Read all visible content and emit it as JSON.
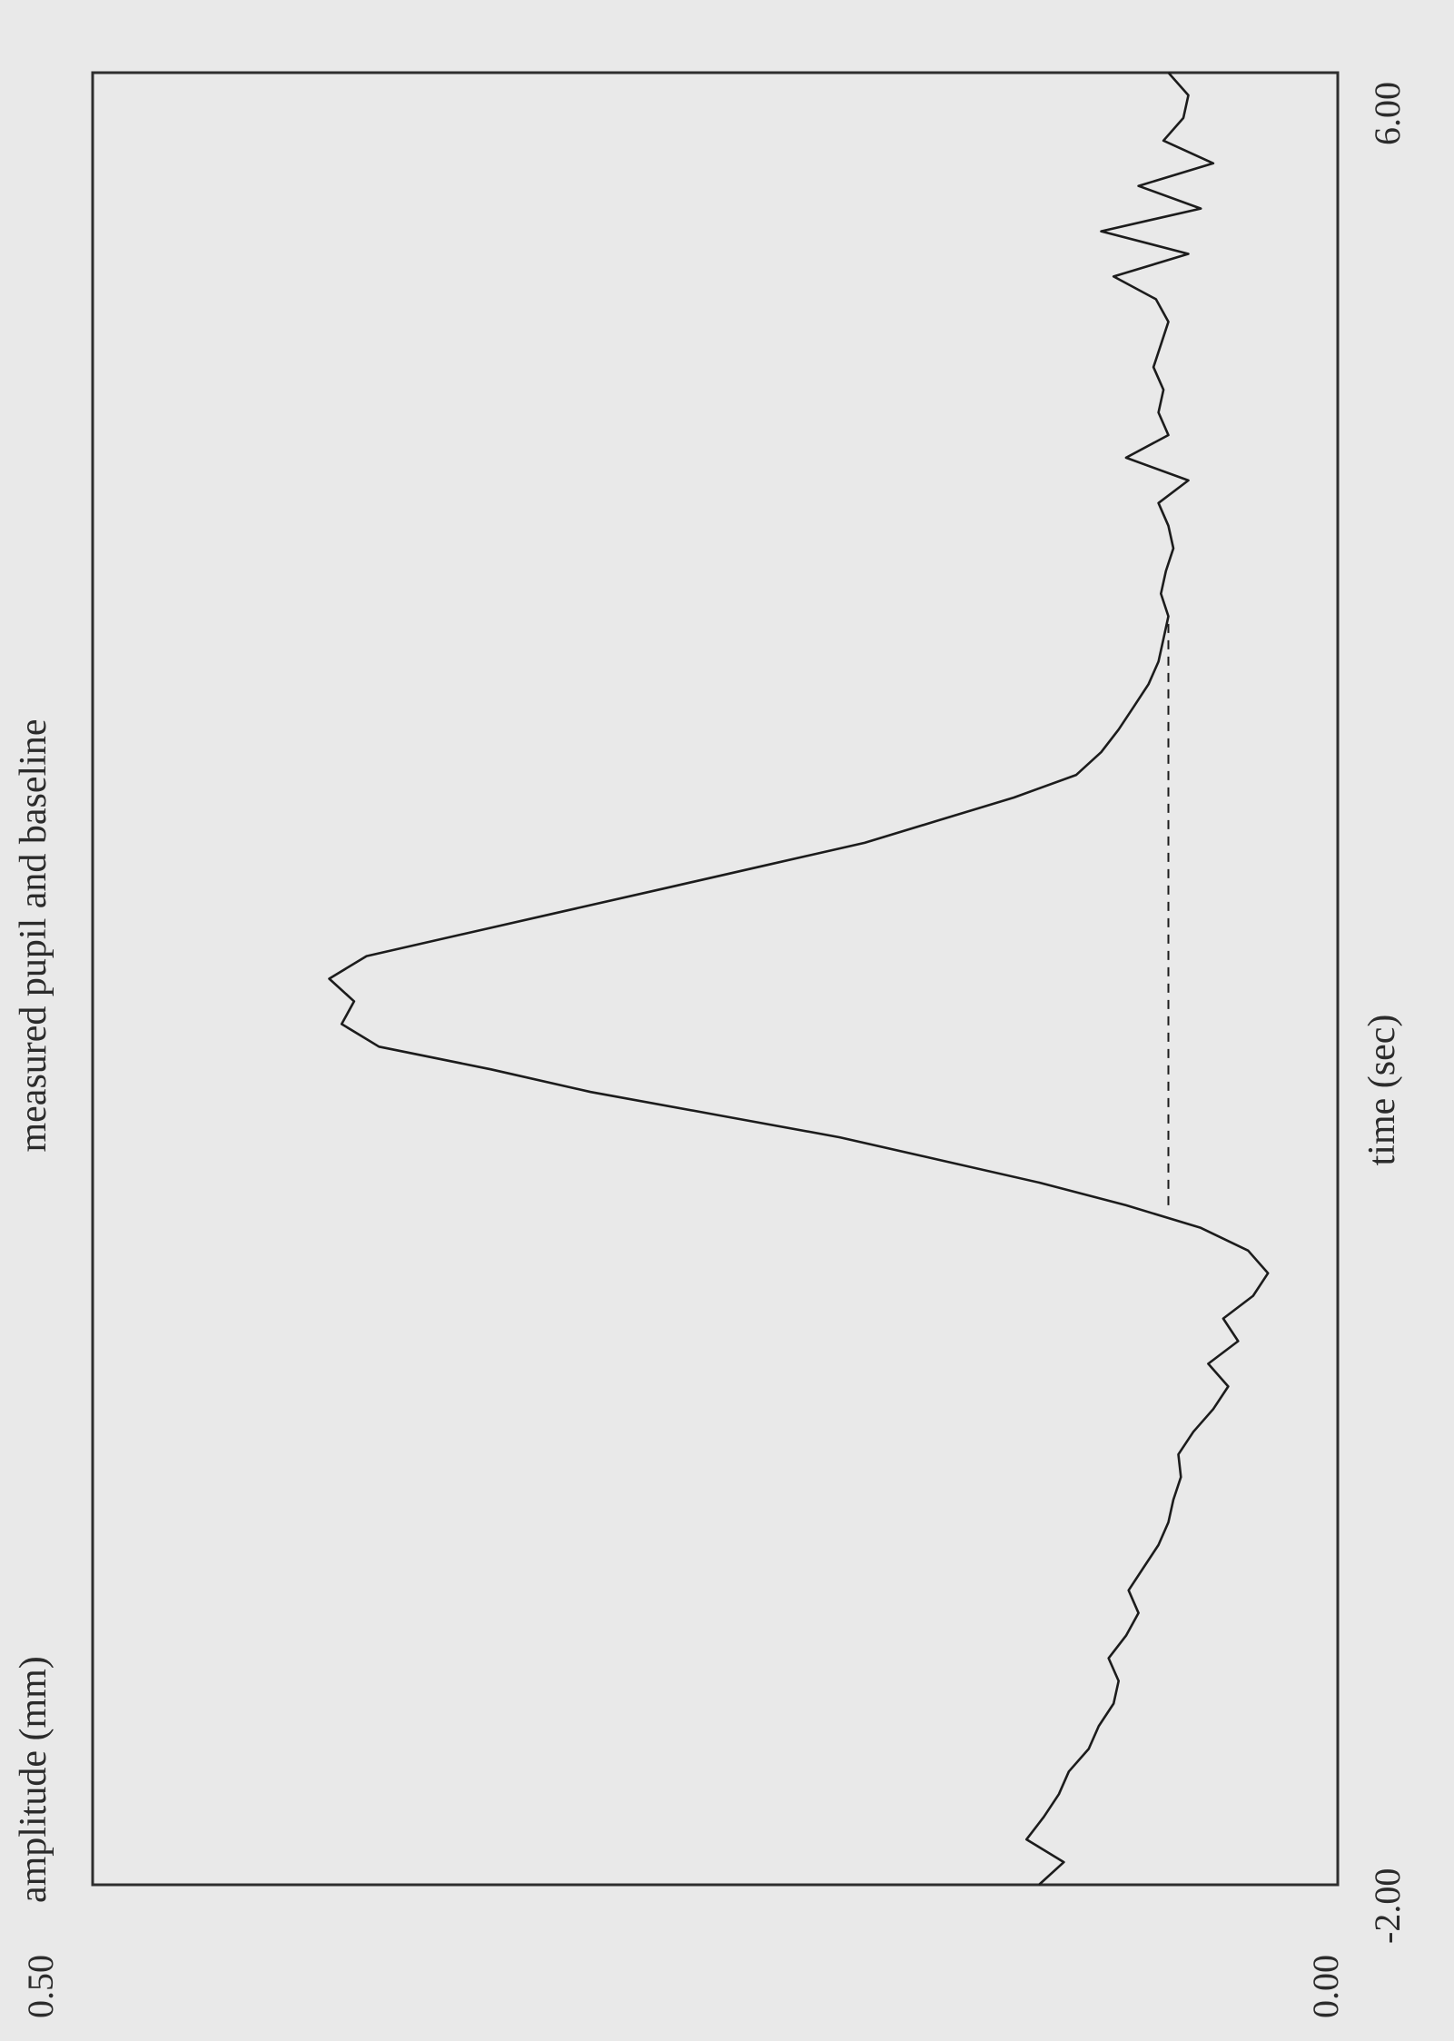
{
  "chart_data": {
    "type": "line",
    "title": "measured pupil and baseline",
    "xlabel": "time (sec)",
    "ylabel": "amplitude (mm)",
    "xlim": [
      -2.0,
      6.0
    ],
    "ylim": [
      0.0,
      0.5
    ],
    "x_tick_labels": [
      "-2.00",
      "6.00"
    ],
    "y_tick_labels": [
      "0.00",
      "0.50"
    ],
    "grid": false,
    "orientation": "rotated 90 degrees counter-clockwise",
    "series": [
      {
        "style": "solid",
        "x": [
          -2.0,
          -1.9,
          -1.8,
          -1.7,
          -1.6,
          -1.5,
          -1.4,
          -1.3,
          -1.2,
          -1.1,
          -1.0,
          -0.9,
          -0.8,
          -0.7,
          -0.6,
          -0.5,
          -0.4,
          -0.3,
          -0.2,
          -0.1,
          0.0,
          0.1,
          0.2,
          0.3,
          0.4,
          0.5,
          0.6,
          0.7,
          0.8,
          0.9,
          1.0,
          1.1,
          1.2,
          1.3,
          1.4,
          1.5,
          1.6,
          1.7,
          1.8,
          1.9,
          2.0,
          2.1,
          2.2,
          2.3,
          2.4,
          2.5,
          2.6,
          2.7,
          2.8,
          2.9,
          3.0,
          3.1,
          3.2,
          3.3,
          3.4,
          3.5,
          3.6,
          3.7,
          3.8,
          3.9,
          4.0,
          4.1,
          4.2,
          4.3,
          4.4,
          4.5,
          4.6,
          4.7,
          4.8,
          4.9,
          5.0,
          5.1,
          5.2,
          5.3,
          5.4,
          5.5,
          5.6,
          5.7,
          5.8,
          5.9,
          6.0
        ],
        "values": [
          0.12,
          0.11,
          0.125,
          0.118,
          0.112,
          0.108,
          0.1,
          0.096,
          0.09,
          0.088,
          0.092,
          0.085,
          0.08,
          0.084,
          0.078,
          0.072,
          0.068,
          0.066,
          0.063,
          0.064,
          0.058,
          0.05,
          0.044,
          0.052,
          0.04,
          0.046,
          0.034,
          0.028,
          0.036,
          0.055,
          0.085,
          0.12,
          0.16,
          0.2,
          0.25,
          0.3,
          0.34,
          0.385,
          0.4,
          0.395,
          0.405,
          0.39,
          0.35,
          0.31,
          0.27,
          0.23,
          0.19,
          0.16,
          0.13,
          0.105,
          0.095,
          0.088,
          0.082,
          0.076,
          0.072,
          0.07,
          0.068,
          0.071,
          0.069,
          0.066,
          0.068,
          0.072,
          0.06,
          0.085,
          0.068,
          0.072,
          0.07,
          0.074,
          0.071,
          0.068,
          0.073,
          0.09,
          0.06,
          0.095,
          0.055,
          0.08,
          0.05,
          0.07,
          0.062,
          0.06,
          0.068
        ]
      },
      {
        "style": "dashed",
        "x": [
          1.0,
          3.6
        ],
        "values": [
          0.068,
          0.068
        ]
      }
    ]
  }
}
